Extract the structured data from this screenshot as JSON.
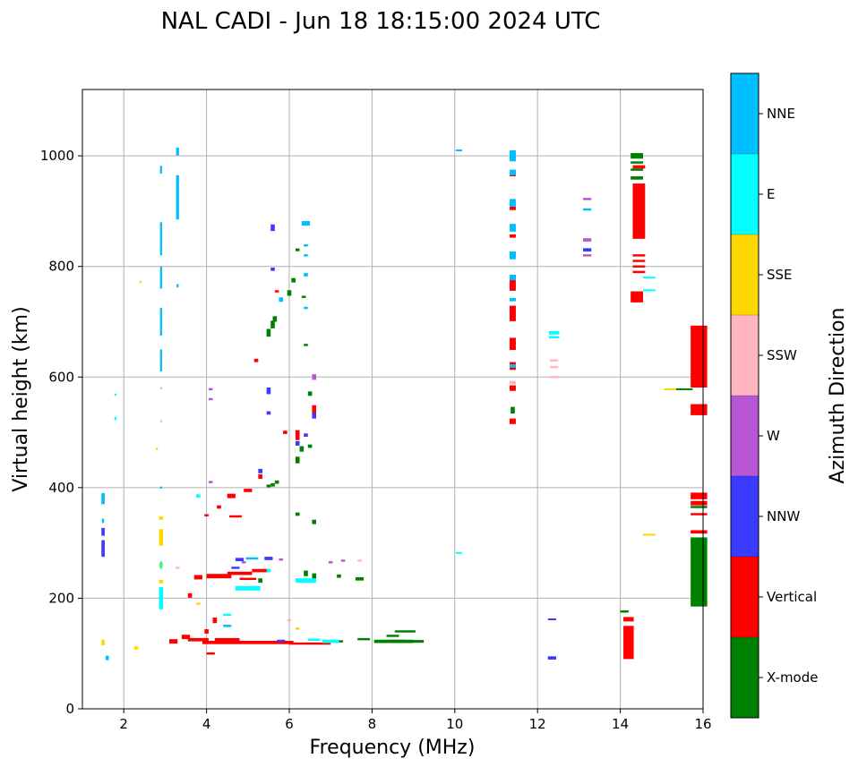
{
  "chart_data": {
    "type": "scatter",
    "title": "NAL CADI - Jun 18 18:15:00 2024 UTC",
    "xlabel": "Frequency (MHz)",
    "ylabel": "Virtual height (km)",
    "xlim": [
      1,
      16
    ],
    "ylim": [
      0,
      1120
    ],
    "xticks": [
      2,
      4,
      6,
      8,
      10,
      12,
      14,
      16
    ],
    "yticks": [
      0,
      200,
      400,
      600,
      800,
      1000
    ],
    "grid": true,
    "colorbar": {
      "title": "Azimuth Direction",
      "categories": [
        {
          "name": "X-mode",
          "color": "#008000"
        },
        {
          "name": "Vertical",
          "color": "#ff0000"
        },
        {
          "name": "NNW",
          "color": "#3b3bff"
        },
        {
          "name": "W",
          "color": "#b856d6"
        },
        {
          "name": "SSW",
          "color": "#ffb6c1"
        },
        {
          "name": "SSE",
          "color": "#ffd700"
        },
        {
          "name": "E",
          "color": "#00ffff"
        },
        {
          "name": "NNE",
          "color": "#00bfff"
        }
      ]
    },
    "series": [
      {
        "name": "X-mode",
        "color": "#008000",
        "points": [
          [
            8.4,
            122,
            0.7,
            6
          ],
          [
            8.7,
            122,
            0.6,
            6
          ],
          [
            9.0,
            122,
            0.5,
            5
          ],
          [
            8.8,
            140,
            0.5,
            4
          ],
          [
            8.5,
            132,
            0.3,
            4
          ],
          [
            7.8,
            126,
            0.3,
            4
          ],
          [
            7.1,
            122,
            0.4,
            4
          ],
          [
            5.6,
            405,
            0.1,
            6
          ],
          [
            5.7,
            410,
            0.1,
            6
          ],
          [
            5.5,
            403,
            0.1,
            5
          ],
          [
            6.2,
            450,
            0.1,
            12
          ],
          [
            6.3,
            470,
            0.1,
            10
          ],
          [
            6.5,
            475,
            0.1,
            6
          ],
          [
            5.5,
            680,
            0.1,
            14
          ],
          [
            5.6,
            695,
            0.1,
            14
          ],
          [
            5.65,
            705,
            0.1,
            10
          ],
          [
            6.0,
            752,
            0.1,
            10
          ],
          [
            6.1,
            775,
            0.1,
            8
          ],
          [
            6.2,
            830,
            0.1,
            5
          ],
          [
            6.35,
            745,
            0.1,
            4
          ],
          [
            6.4,
            658,
            0.1,
            4
          ],
          [
            6.5,
            570,
            0.1,
            8
          ],
          [
            6.6,
            338,
            0.1,
            8
          ],
          [
            6.2,
            352,
            0.1,
            6
          ],
          [
            6.4,
            245,
            0.1,
            10
          ],
          [
            6.6,
            240,
            0.1,
            10
          ],
          [
            7.2,
            240,
            0.1,
            6
          ],
          [
            7.7,
            235,
            0.2,
            6
          ],
          [
            15.9,
            245,
            0.4,
            120
          ],
          [
            15.9,
            305,
            0.4,
            10
          ],
          [
            15.9,
            365,
            0.4,
            4
          ],
          [
            15.5,
            578,
            0.5,
            3
          ],
          [
            14.4,
            1000,
            0.3,
            10
          ],
          [
            14.4,
            988,
            0.3,
            4
          ],
          [
            14.4,
            975,
            0.3,
            4
          ],
          [
            14.4,
            960,
            0.3,
            6
          ],
          [
            11.4,
            540,
            0.1,
            12
          ],
          [
            14.1,
            176,
            0.2,
            4
          ],
          [
            5.3,
            232,
            0.1,
            8
          ]
        ]
      },
      {
        "name": "Vertical",
        "color": "#ff0000",
        "points": [
          [
            5.0,
            120,
            2.2,
            6
          ],
          [
            4.5,
            125,
            0.6,
            6
          ],
          [
            3.8,
            125,
            0.5,
            6
          ],
          [
            6.5,
            118,
            1.0,
            4
          ],
          [
            4.2,
            160,
            0.1,
            10
          ],
          [
            4.0,
            140,
            0.1,
            8
          ],
          [
            3.5,
            130,
            0.2,
            8
          ],
          [
            3.2,
            122,
            0.2,
            8
          ],
          [
            4.3,
            240,
            0.6,
            8
          ],
          [
            4.8,
            245,
            0.6,
            6
          ],
          [
            5.3,
            250,
            0.4,
            6
          ],
          [
            5.0,
            235,
            0.4,
            4
          ],
          [
            3.8,
            238,
            0.2,
            8
          ],
          [
            4.3,
            365,
            0.1,
            6
          ],
          [
            4.6,
            385,
            0.2,
            8
          ],
          [
            5.0,
            395,
            0.2,
            6
          ],
          [
            5.3,
            420,
            0.1,
            8
          ],
          [
            4.7,
            348,
            0.3,
            4
          ],
          [
            4.0,
            350,
            0.1,
            4
          ],
          [
            6.2,
            495,
            0.1,
            18
          ],
          [
            6.6,
            540,
            0.1,
            18
          ],
          [
            5.9,
            500,
            0.1,
            6
          ],
          [
            5.7,
            755,
            0.1,
            4
          ],
          [
            5.2,
            630,
            0.1,
            6
          ],
          [
            3.6,
            205,
            0.1,
            8
          ],
          [
            4.1,
            100,
            0.2,
            4
          ],
          [
            11.4,
            520,
            0.15,
            10
          ],
          [
            11.4,
            580,
            0.15,
            10
          ],
          [
            11.4,
            620,
            0.15,
            14
          ],
          [
            11.4,
            660,
            0.15,
            22
          ],
          [
            11.4,
            715,
            0.15,
            28
          ],
          [
            11.4,
            770,
            0.15,
            28
          ],
          [
            11.4,
            855,
            0.15,
            6
          ],
          [
            11.4,
            905,
            0.15,
            6
          ],
          [
            11.4,
            968,
            0.15,
            10
          ],
          [
            14.2,
            120,
            0.25,
            60
          ],
          [
            14.2,
            162,
            0.25,
            8
          ],
          [
            14.45,
            900,
            0.3,
            100
          ],
          [
            14.45,
            820,
            0.3,
            4
          ],
          [
            14.45,
            810,
            0.3,
            4
          ],
          [
            14.45,
            800,
            0.3,
            4
          ],
          [
            14.45,
            790,
            0.3,
            4
          ],
          [
            14.4,
            745,
            0.3,
            20
          ],
          [
            15.9,
            637,
            0.4,
            112
          ],
          [
            15.9,
            541,
            0.4,
            20
          ],
          [
            15.9,
            385,
            0.4,
            12
          ],
          [
            15.9,
            372,
            0.4,
            8
          ],
          [
            15.9,
            352,
            0.4,
            4
          ],
          [
            15.9,
            320,
            0.4,
            6
          ],
          [
            14.45,
            980,
            0.3,
            6
          ]
        ]
      },
      {
        "name": "NNW",
        "color": "#3b3bff",
        "points": [
          [
            1.5,
            290,
            0.08,
            30
          ],
          [
            1.5,
            320,
            0.08,
            14
          ],
          [
            4.8,
            270,
            0.2,
            6
          ],
          [
            5.5,
            272,
            0.2,
            6
          ],
          [
            4.7,
            255,
            0.2,
            4
          ],
          [
            5.5,
            575,
            0.1,
            12
          ],
          [
            6.2,
            480,
            0.1,
            8
          ],
          [
            6.4,
            495,
            0.1,
            6
          ],
          [
            5.6,
            870,
            0.1,
            12
          ],
          [
            5.6,
            795,
            0.1,
            6
          ],
          [
            5.5,
            535,
            0.1,
            6
          ],
          [
            6.6,
            530,
            0.1,
            10
          ],
          [
            12.35,
            92,
            0.2,
            6
          ],
          [
            12.35,
            162,
            0.2,
            3
          ],
          [
            13.2,
            830,
            0.2,
            6
          ],
          [
            5.3,
            430,
            0.1,
            8
          ],
          [
            5.8,
            123,
            0.2,
            4
          ]
        ]
      },
      {
        "name": "W",
        "color": "#b856d6",
        "points": [
          [
            6.6,
            600,
            0.1,
            10
          ],
          [
            4.1,
            578,
            0.1,
            4
          ],
          [
            4.1,
            560,
            0.1,
            4
          ],
          [
            4.1,
            410,
            0.1,
            4
          ],
          [
            13.2,
            922,
            0.2,
            4
          ],
          [
            13.2,
            848,
            0.2,
            6
          ],
          [
            13.2,
            820,
            0.2,
            4
          ],
          [
            5.8,
            270,
            0.1,
            4
          ],
          [
            7.0,
            265,
            0.1,
            4
          ],
          [
            7.3,
            268,
            0.1,
            4
          ],
          [
            4.9,
            265,
            0.1,
            4
          ]
        ]
      },
      {
        "name": "SSW",
        "color": "#ffb6c1",
        "points": [
          [
            12.4,
            630,
            0.2,
            4
          ],
          [
            12.4,
            618,
            0.2,
            4
          ],
          [
            12.4,
            600,
            0.2,
            4
          ],
          [
            2.9,
            580,
            0.05,
            4
          ],
          [
            2.9,
            520,
            0.05,
            4
          ],
          [
            6.0,
            160,
            0.1,
            4
          ],
          [
            7.7,
            268,
            0.1,
            4
          ],
          [
            3.3,
            255,
            0.1,
            4
          ],
          [
            11.4,
            590,
            0.15,
            6
          ]
        ]
      },
      {
        "name": "SSE",
        "color": "#ffd700",
        "points": [
          [
            2.9,
            310,
            0.1,
            30
          ],
          [
            2.9,
            260,
            0.1,
            8
          ],
          [
            2.9,
            345,
            0.1,
            6
          ],
          [
            1.5,
            120,
            0.08,
            10
          ],
          [
            2.3,
            110,
            0.1,
            6
          ],
          [
            2.4,
            772,
            0.05,
            4
          ],
          [
            2.8,
            470,
            0.05,
            4
          ],
          [
            14.7,
            315,
            0.3,
            3
          ],
          [
            15.2,
            578,
            0.3,
            3
          ],
          [
            3.8,
            190,
            0.1,
            4
          ],
          [
            6.2,
            145,
            0.1,
            4
          ],
          [
            2.9,
            230,
            0.1,
            6
          ]
        ]
      },
      {
        "name": "E",
        "color": "#00ffff",
        "points": [
          [
            2.9,
            200,
            0.1,
            40
          ],
          [
            2.9,
            260,
            0.05,
            14
          ],
          [
            3.8,
            385,
            0.1,
            6
          ],
          [
            5.0,
            218,
            0.6,
            8
          ],
          [
            6.4,
            232,
            0.5,
            8
          ],
          [
            7.0,
            122,
            0.4,
            6
          ],
          [
            12.4,
            680,
            0.25,
            6
          ],
          [
            12.4,
            672,
            0.25,
            4
          ],
          [
            14.7,
            780,
            0.3,
            3
          ],
          [
            14.7,
            757,
            0.3,
            3
          ],
          [
            10.1,
            282,
            0.15,
            3
          ],
          [
            1.8,
            525,
            0.05,
            6
          ],
          [
            1.8,
            568,
            0.05,
            4
          ],
          [
            4.5,
            170,
            0.2,
            4
          ],
          [
            6.6,
            125,
            0.3,
            4
          ],
          [
            5.5,
            250,
            0.1,
            6
          ]
        ]
      },
      {
        "name": "NNE",
        "color": "#00bfff",
        "points": [
          [
            3.3,
            925,
            0.07,
            80
          ],
          [
            3.3,
            1008,
            0.07,
            14
          ],
          [
            2.9,
            850,
            0.05,
            60
          ],
          [
            2.9,
            780,
            0.05,
            40
          ],
          [
            2.9,
            700,
            0.05,
            50
          ],
          [
            2.9,
            630,
            0.05,
            40
          ],
          [
            2.9,
            400,
            0.05,
            4
          ],
          [
            2.9,
            975,
            0.05,
            14
          ],
          [
            11.4,
            1000,
            0.15,
            20
          ],
          [
            11.4,
            970,
            0.15,
            10
          ],
          [
            11.4,
            915,
            0.15,
            14
          ],
          [
            11.4,
            870,
            0.15,
            14
          ],
          [
            11.4,
            820,
            0.15,
            14
          ],
          [
            11.4,
            780,
            0.15,
            10
          ],
          [
            11.4,
            740,
            0.15,
            6
          ],
          [
            11.4,
            620,
            0.15,
            6
          ],
          [
            6.4,
            878,
            0.2,
            8
          ],
          [
            6.4,
            838,
            0.1,
            4
          ],
          [
            6.4,
            820,
            0.1,
            4
          ],
          [
            6.4,
            785,
            0.1,
            6
          ],
          [
            6.4,
            725,
            0.1,
            4
          ],
          [
            5.8,
            740,
            0.1,
            8
          ],
          [
            13.2,
            903,
            0.2,
            4
          ],
          [
            10.1,
            1010,
            0.15,
            3
          ],
          [
            1.5,
            380,
            0.08,
            20
          ],
          [
            1.5,
            340,
            0.05,
            8
          ],
          [
            1.6,
            92,
            0.08,
            8
          ],
          [
            3.3,
            765,
            0.05,
            6
          ],
          [
            4.5,
            150,
            0.2,
            4
          ],
          [
            5.1,
            272,
            0.3,
            4
          ]
        ]
      }
    ]
  }
}
